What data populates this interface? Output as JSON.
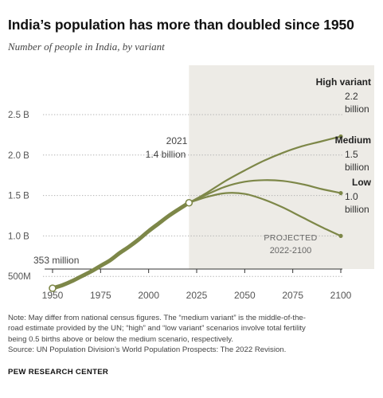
{
  "title": "India’s population has more than doubled since 1950",
  "subtitle": "Number of people in India, by variant",
  "chart_data": {
    "type": "line",
    "ylim": [
      0,
      2.5
    ],
    "xlim": [
      1950,
      2100
    ],
    "x_ticks": [
      1950,
      1975,
      2000,
      2025,
      2050,
      2075,
      2100
    ],
    "y_ticks": [
      {
        "value": 0.5,
        "label": "500M"
      },
      {
        "value": 1.0,
        "label": "1.0 B"
      },
      {
        "value": 1.5,
        "label": "1.5  B"
      },
      {
        "value": 2.0,
        "label": "2.0 B"
      },
      {
        "value": 2.5,
        "label": "2.5 B"
      }
    ],
    "grid": true,
    "projection": {
      "start": 2021,
      "end": 2100,
      "label_line1": "PROJECTED",
      "label_line2": "2022-2100"
    },
    "historical": {
      "x": [
        1950,
        1955,
        1960,
        1965,
        1970,
        1975,
        1980,
        1985,
        1990,
        1995,
        2000,
        2005,
        2010,
        2015,
        2021
      ],
      "values": [
        0.353,
        0.39,
        0.44,
        0.5,
        0.56,
        0.63,
        0.7,
        0.79,
        0.87,
        0.96,
        1.06,
        1.15,
        1.24,
        1.32,
        1.41
      ]
    },
    "series": [
      {
        "name": "High variant",
        "x": [
          2021,
          2030,
          2040,
          2050,
          2060,
          2070,
          2080,
          2090,
          2100
        ],
        "values": [
          1.41,
          1.53,
          1.68,
          1.81,
          1.93,
          2.03,
          2.11,
          2.17,
          2.23
        ]
      },
      {
        "name": "Medium",
        "x": [
          2021,
          2030,
          2040,
          2050,
          2060,
          2070,
          2080,
          2090,
          2100
        ],
        "values": [
          1.41,
          1.51,
          1.61,
          1.67,
          1.69,
          1.68,
          1.64,
          1.58,
          1.53
        ]
      },
      {
        "name": "Low",
        "x": [
          2021,
          2030,
          2040,
          2050,
          2060,
          2070,
          2080,
          2090,
          2100
        ],
        "values": [
          1.41,
          1.48,
          1.53,
          1.52,
          1.45,
          1.35,
          1.23,
          1.11,
          1.0
        ]
      }
    ],
    "annotations": {
      "start": {
        "x": 1950,
        "value": 0.353,
        "label": "353 million"
      },
      "current": {
        "x": 2021,
        "value": 1.41,
        "label_line1": "2021",
        "label_line2": "1.4 billion"
      },
      "high": {
        "label_name": "High variant",
        "value_line1": "2.2",
        "value_line2": "billion"
      },
      "medium": {
        "label_name": "Medium",
        "value_line1": "1.5",
        "value_line2": "billion"
      },
      "low": {
        "label_name": "Low",
        "value_line1": "1.0",
        "value_line2": "billion"
      }
    },
    "colors": {
      "line": "#7d8748",
      "projection_bg": "#edebe6",
      "grid": "#b0b0b0"
    }
  },
  "footer": {
    "note_line1": "Note: May differ from national census figures. The “medium variant” is the middle-of-the-",
    "note_line2": "road estimate provided by the UN; “high” and “low variant” scenarios involve total fertility",
    "note_line3": "being 0.5 births above or below the medium scenario, respectively.",
    "source": "Source: UN Population Division’s World Population Prospects: The 2022 Revision.",
    "brand": "PEW RESEARCH CENTER"
  }
}
